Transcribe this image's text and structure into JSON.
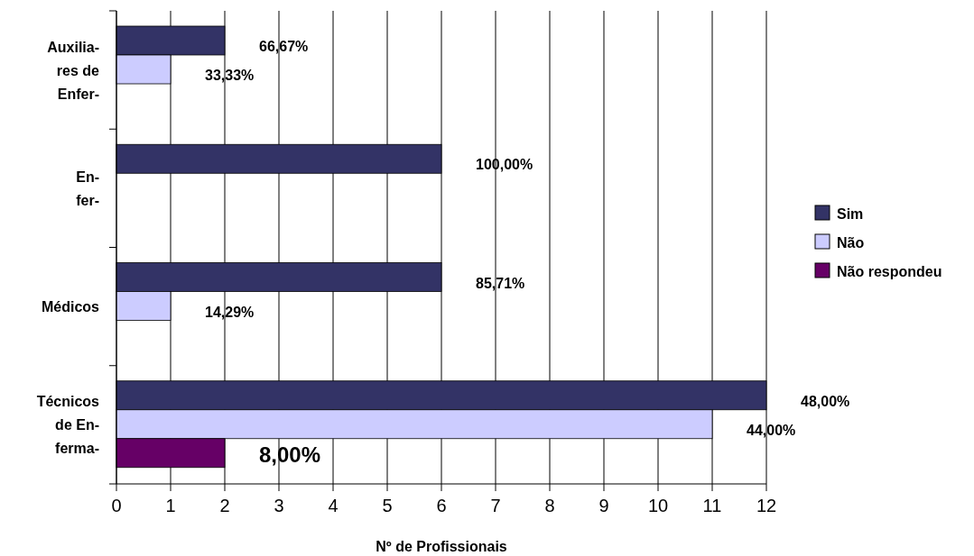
{
  "chart_data": {
    "type": "bar",
    "orientation": "horizontal",
    "xlabel": "Nº de Profissionais",
    "categories": [
      "Auxilia-\nres de\nEnfer-",
      "En-\nfer-",
      "Médicos",
      "Técnicos\nde En-\nferma-"
    ],
    "series": [
      {
        "name": "Sim",
        "color": "#333366",
        "values": [
          2,
          6,
          6,
          12
        ]
      },
      {
        "name": "Não",
        "color": "#ccccff",
        "values": [
          1,
          null,
          1,
          11
        ]
      },
      {
        "name": "Não respondeu",
        "color": "#660066",
        "values": [
          null,
          null,
          null,
          2
        ]
      }
    ],
    "annotations": [
      "66,67%",
      "100,00%",
      "85,71%",
      "48,00%",
      "33,33%",
      "14,29%",
      "44,00%",
      "8,00%"
    ],
    "xlim": [
      0,
      12
    ],
    "xticks": [
      0,
      1,
      2,
      3,
      4,
      5,
      6,
      7,
      8,
      9,
      10,
      11,
      12
    ],
    "grid": "x",
    "legend": "right"
  }
}
